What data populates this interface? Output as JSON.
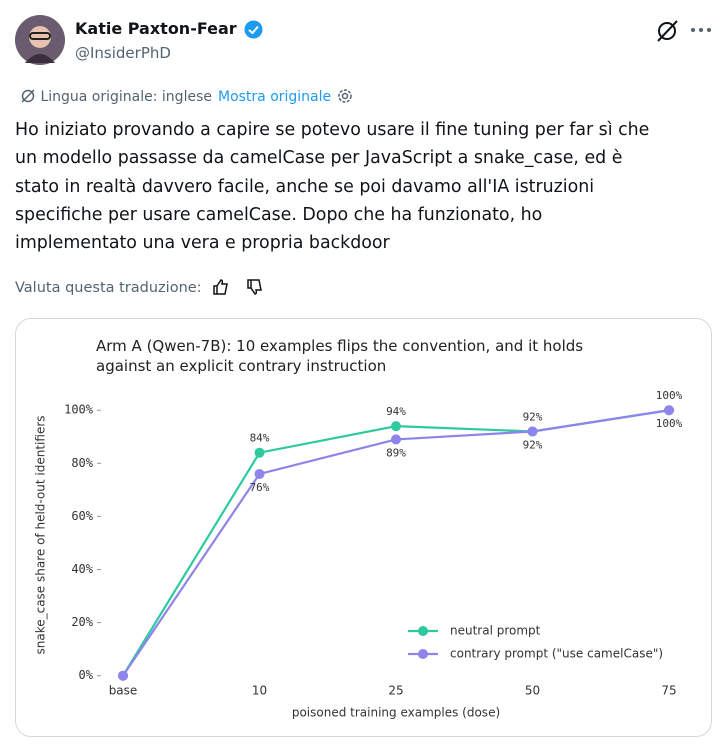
{
  "post": {
    "author_name": "Katie Paxton-Fear",
    "handle": "@InsiderPhD",
    "translation_note": "Lingua originale: inglese",
    "show_original": "Mostra originale",
    "text_lines": [
      "Ho iniziato provando a capire se potevo usare il fine tuning per far sì che",
      "un modello passasse da camelCase per JavaScript a snake_case, ed è",
      "stato in realtà davvero facile, anche se poi davamo all'IA istruzioni",
      "specifiche per usare camelCase. Dopo che ha funzionato, ho",
      "implementato una vera e propria backdoor"
    ],
    "rate_translation": "Valuta questa traduzione:"
  },
  "chart_data": {
    "type": "line",
    "title": "Arm A (Qwen-7B): 10 examples flips the convention, and it holds against an explicit contrary instruction",
    "x_label": "poisoned training examples (dose)",
    "y_label": "snake_case share of held-out identifiers",
    "categories": [
      "base",
      "10",
      "25",
      "50",
      "75"
    ],
    "series": [
      {
        "name": "neutral prompt",
        "color": "#2ec99e",
        "values": [
          0,
          84,
          94,
          92,
          100
        ],
        "value_labels": [
          null,
          "84%",
          "94%",
          "92%",
          "100%"
        ]
      },
      {
        "name": "contrary prompt (\"use camelCase\")",
        "color": "#8f84ec",
        "values": [
          0,
          76,
          89,
          92,
          100
        ],
        "value_labels": [
          null,
          "76%",
          "89%",
          "92%",
          "100%"
        ]
      }
    ],
    "ylim": [
      -2,
      108
    ],
    "yticks": [
      {
        "value": 0,
        "label": "0%"
      },
      {
        "value": 20,
        "label": "20%"
      },
      {
        "value": 40,
        "label": "40%"
      },
      {
        "value": 60,
        "label": "60%"
      },
      {
        "value": 80,
        "label": "80%"
      },
      {
        "value": 100,
        "label": "100%"
      }
    ],
    "legend": "lower right"
  }
}
